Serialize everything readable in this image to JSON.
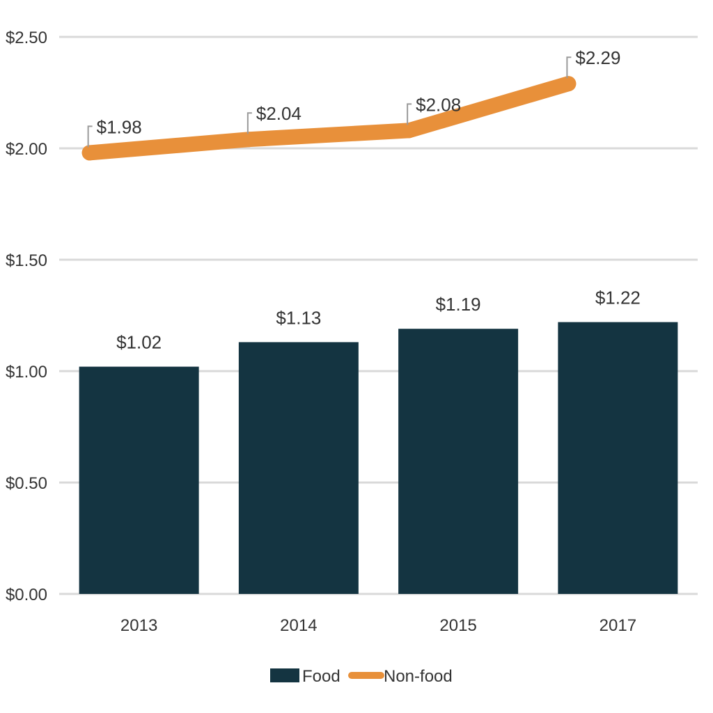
{
  "chart_data": {
    "type": "bar",
    "categories": [
      "2013",
      "2014",
      "2015",
      "2017"
    ],
    "series": [
      {
        "name": "Food",
        "type": "bar",
        "values": [
          1.02,
          1.13,
          1.19,
          1.22
        ],
        "labels": [
          "$1.02",
          "$1.13",
          "$1.19",
          "$1.22"
        ],
        "color": "#143441"
      },
      {
        "name": "Non-food",
        "type": "line",
        "values": [
          1.98,
          2.04,
          2.08,
          2.29
        ],
        "labels": [
          "$1.98",
          "$2.04",
          "$2.08",
          "$2.29"
        ],
        "color": "#E8903A"
      }
    ],
    "yticks": [
      0,
      0.5,
      1.0,
      1.5,
      2.0,
      2.5
    ],
    "ytick_labels": [
      "$0.00",
      "$0.50",
      "$1.00",
      "$1.50",
      "$2.00",
      "$2.50"
    ],
    "ylim": [
      0,
      2.5
    ],
    "grid": true,
    "legend": "bottom-center",
    "gridline_color": "#d9d9d9"
  }
}
